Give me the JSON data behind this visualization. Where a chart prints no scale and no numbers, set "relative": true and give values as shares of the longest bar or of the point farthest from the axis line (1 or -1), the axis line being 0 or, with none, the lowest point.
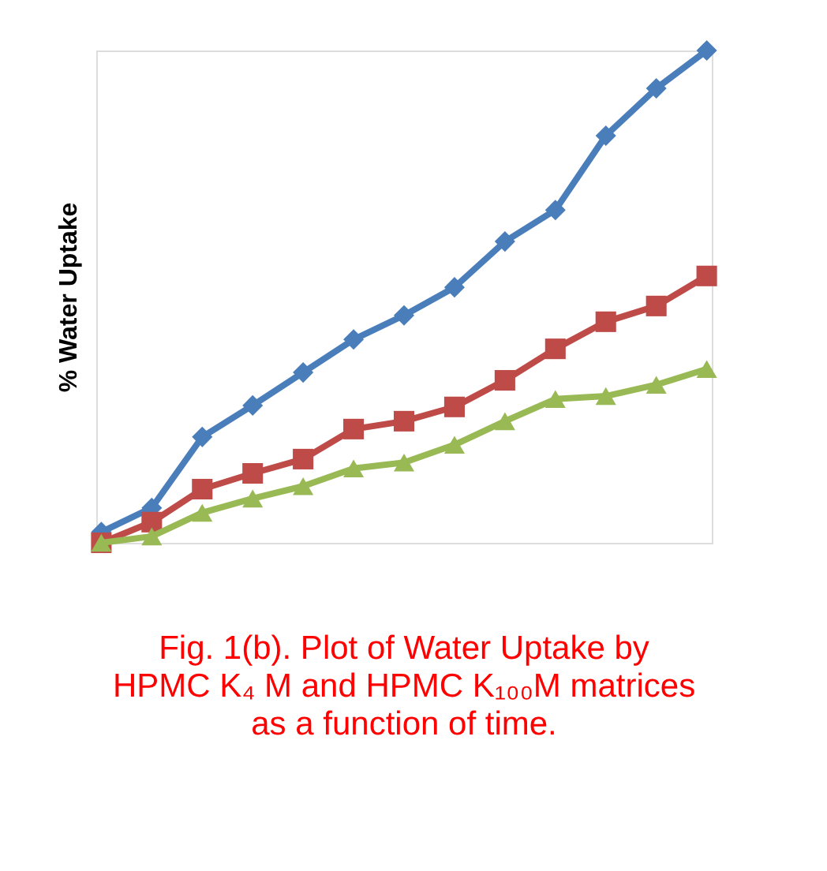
{
  "chart_data": {
    "type": "line",
    "relative": true,
    "ylabel": "% Water Uptake",
    "categories": [
      null,
      null,
      null,
      null,
      null,
      null,
      null,
      null,
      null,
      null,
      null,
      null,
      null
    ],
    "series": [
      {
        "color": "#4a7ebb",
        "marker": "diamond",
        "values": [
          0.022,
          0.071,
          0.215,
          0.279,
          0.346,
          0.413,
          0.462,
          0.519,
          0.612,
          0.676,
          0.827,
          0.923,
          1.0
        ]
      },
      {
        "color": "#be4b48",
        "marker": "square",
        "values": [
          0,
          0.042,
          0.109,
          0.141,
          0.17,
          0.231,
          0.247,
          0.276,
          0.33,
          0.394,
          0.449,
          0.481,
          0.542
        ]
      },
      {
        "color": "#98b954",
        "marker": "triangle",
        "values": [
          0,
          0.013,
          0.061,
          0.09,
          0.115,
          0.151,
          0.163,
          0.199,
          0.247,
          0.292,
          0.298,
          0.321,
          0.353
        ]
      }
    ],
    "grid": false,
    "line_style": "solid",
    "annotations": [
      "Fig. 1(b). Plot of Water Uptake by HPMC K₄ M and HPMC  K₁₀₀M matrices as a function  of time."
    ]
  }
}
